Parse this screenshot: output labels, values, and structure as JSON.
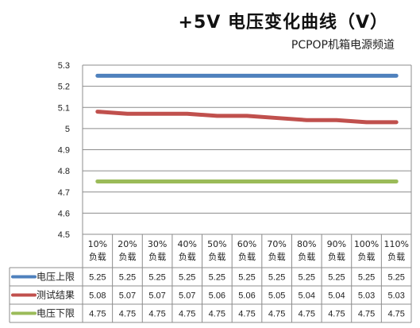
{
  "chart_data": {
    "type": "line",
    "title": "+5V 电压变化曲线（V）",
    "subtitle": "PCPOP机箱电源频道",
    "categories": [
      [
        "10%",
        "负载"
      ],
      [
        "20%",
        "负载"
      ],
      [
        "30%",
        "负载"
      ],
      [
        "40%",
        "负载"
      ],
      [
        "50%",
        "负载"
      ],
      [
        "60%",
        "负载"
      ],
      [
        "70%",
        "负载"
      ],
      [
        "80%",
        "负载"
      ],
      [
        "90%",
        "负载"
      ],
      [
        "100%",
        "负载"
      ],
      [
        "110%",
        "负载"
      ]
    ],
    "yticks": [
      "5.3",
      "5.2",
      "5.1",
      "5",
      "4.9",
      "4.8",
      "4.7",
      "4.6",
      "4.5"
    ],
    "ylim": [
      4.5,
      5.3
    ],
    "grid": true,
    "legend_placement": "table-below",
    "series": [
      {
        "name": "电压上限",
        "color": "#4f81bd",
        "values": [
          5.25,
          5.25,
          5.25,
          5.25,
          5.25,
          5.25,
          5.25,
          5.25,
          5.25,
          5.25,
          5.25
        ],
        "labels": [
          "5.25",
          "5.25",
          "5.25",
          "5.25",
          "5.25",
          "5.25",
          "5.25",
          "5.25",
          "5.25",
          "5.25",
          "5.25"
        ]
      },
      {
        "name": "测试结果",
        "color": "#c0504d",
        "values": [
          5.08,
          5.07,
          5.07,
          5.07,
          5.06,
          5.06,
          5.05,
          5.04,
          5.04,
          5.03,
          5.03
        ],
        "labels": [
          "5.08",
          "5.07",
          "5.07",
          "5.07",
          "5.06",
          "5.06",
          "5.05",
          "5.04",
          "5.04",
          "5.03",
          "5.03"
        ]
      },
      {
        "name": "电压下限",
        "color": "#9bbb59",
        "values": [
          4.75,
          4.75,
          4.75,
          4.75,
          4.75,
          4.75,
          4.75,
          4.75,
          4.75,
          4.75,
          4.75
        ],
        "labels": [
          "4.75",
          "4.75",
          "4.75",
          "4.75",
          "4.75",
          "4.75",
          "4.75",
          "4.75",
          "4.75",
          "4.75",
          "4.75"
        ]
      }
    ]
  }
}
